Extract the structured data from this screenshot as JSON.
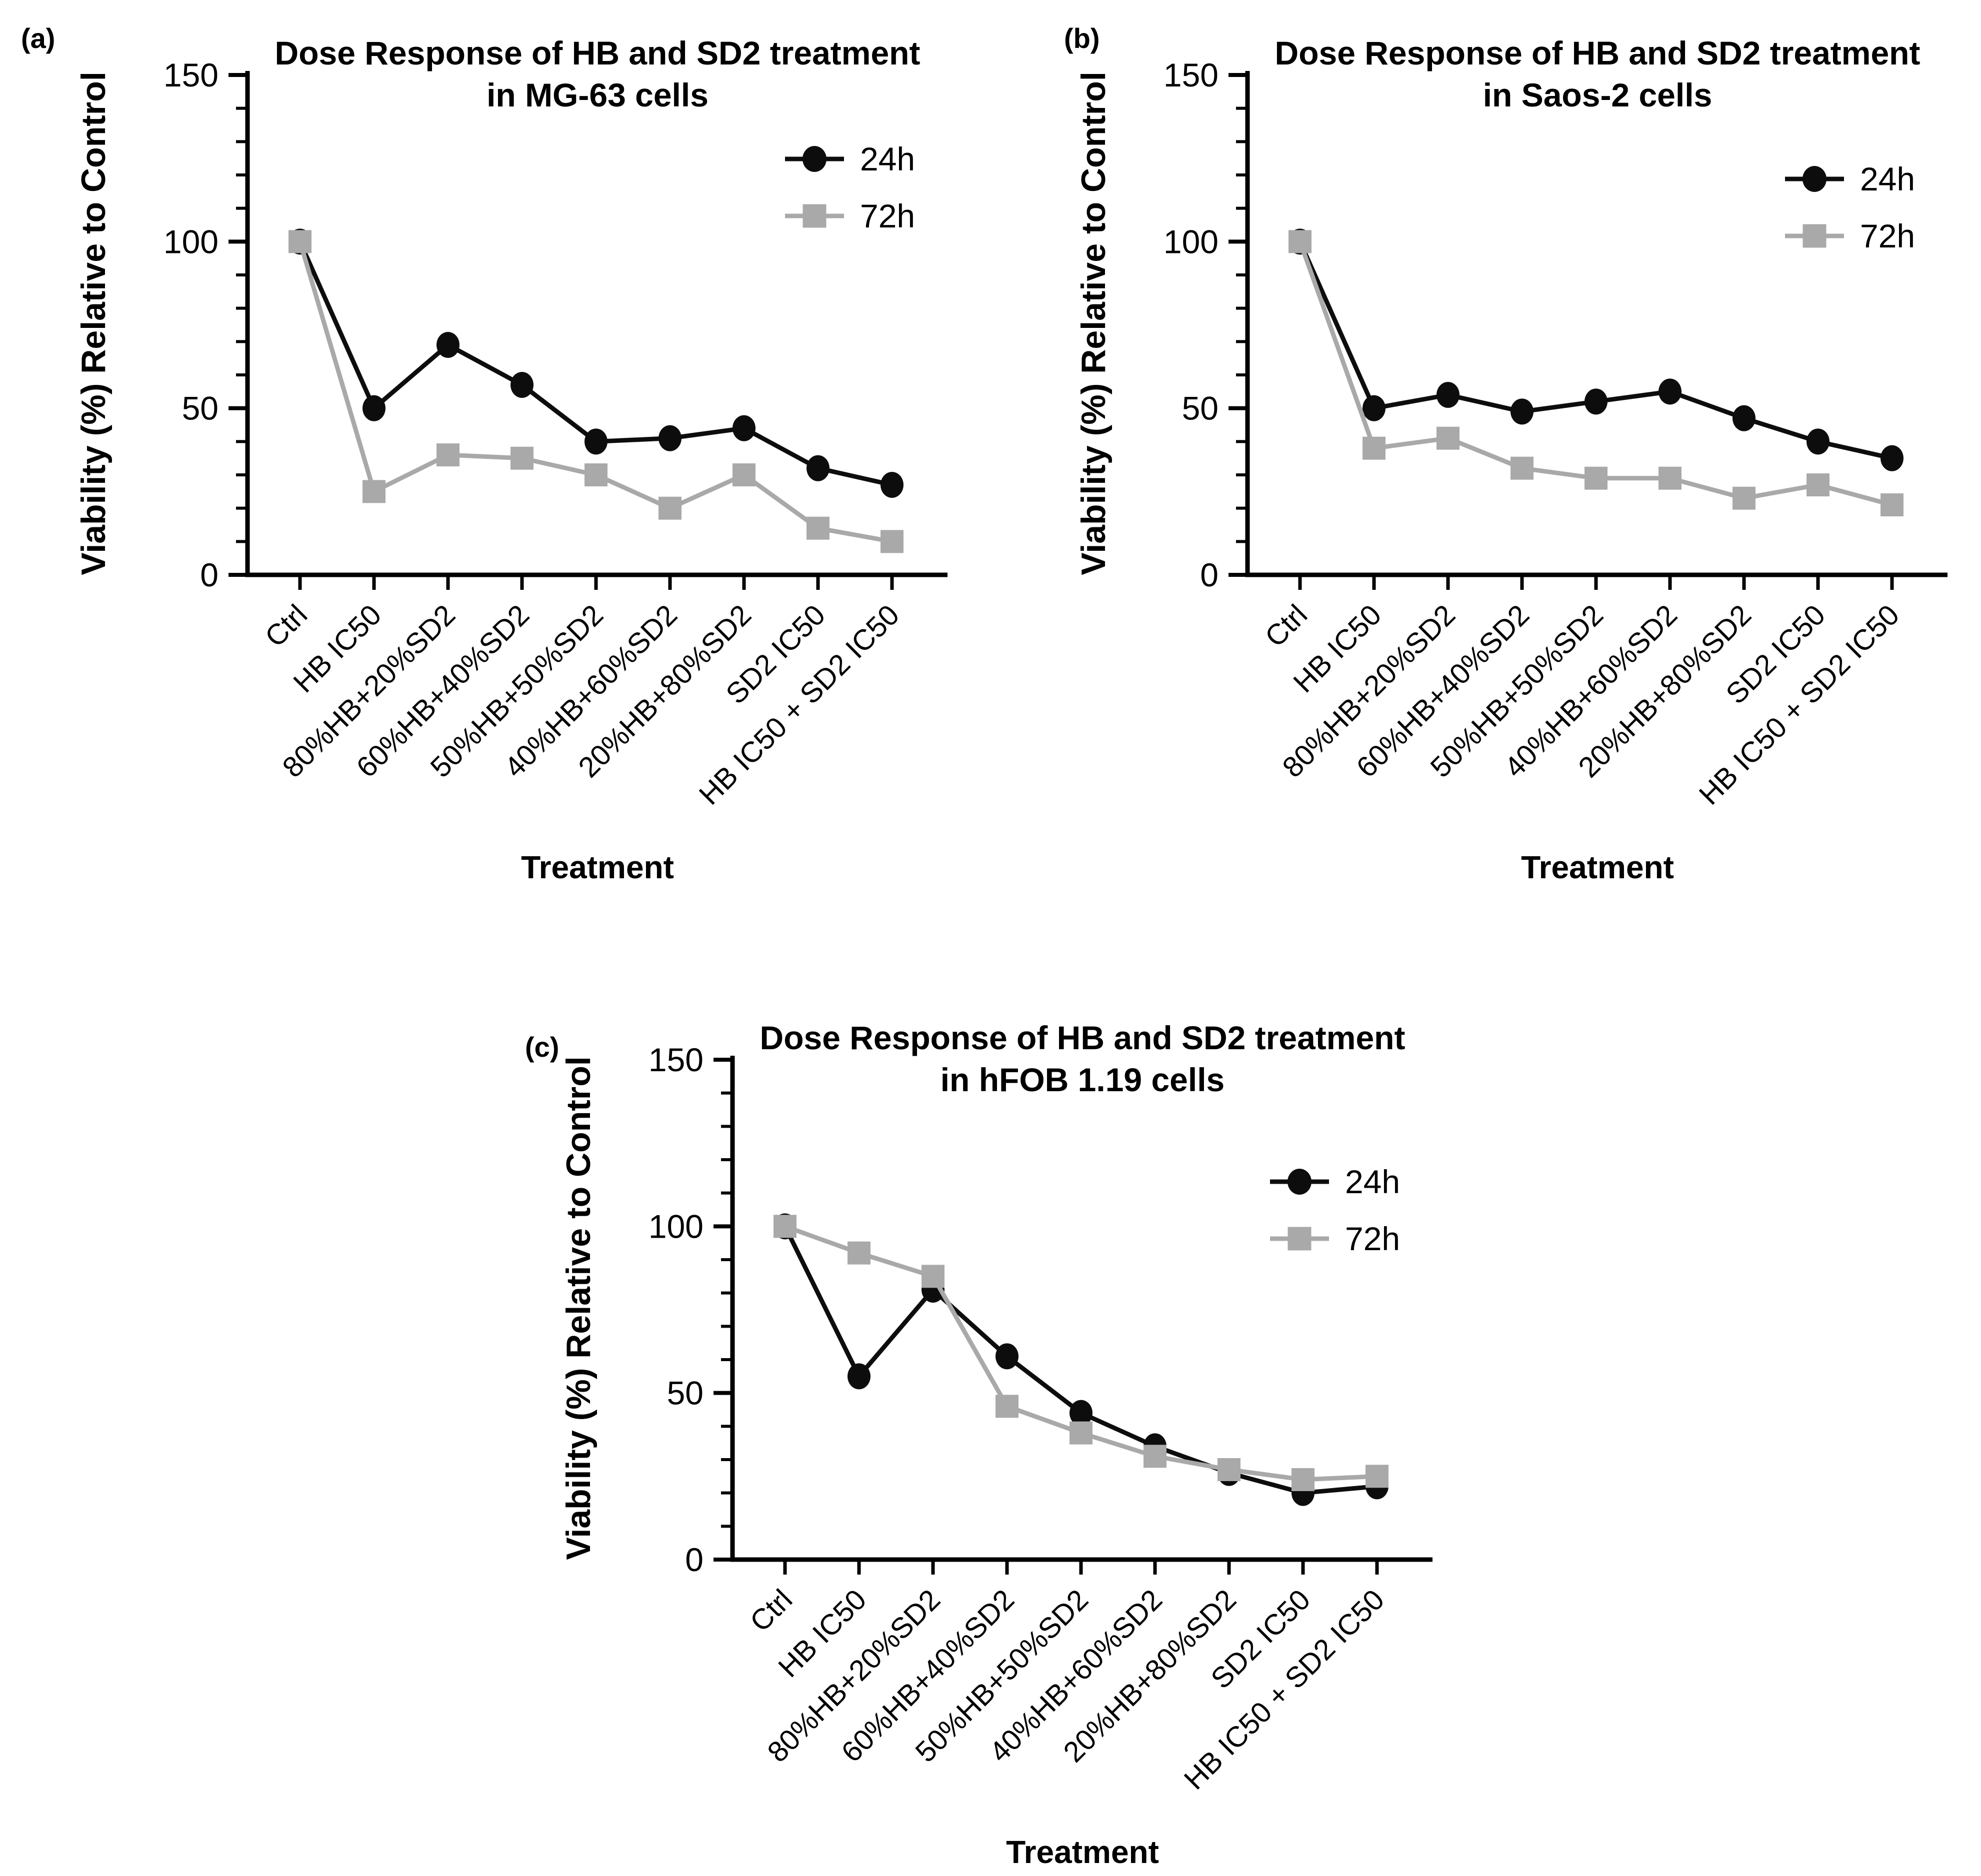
{
  "figure": {
    "background_color": "#ffffff",
    "axis_color": "#000000",
    "series_24h_color": "#0d0d0d",
    "series_72h_color": "#a9a9a9"
  },
  "panels": [
    {
      "panel_label": "(a)",
      "title_line1": "Dose Response of HB and SD2 treatment",
      "title_line2": "in MG-63 cells",
      "y_axis_label": "Viability (%) Relative to Control",
      "x_axis_label": "Treatment",
      "legend": [
        {
          "label": "24h",
          "marker": "circle",
          "color": "#0d0d0d"
        },
        {
          "label": "72h",
          "marker": "square",
          "color": "#a9a9a9"
        }
      ]
    },
    {
      "panel_label": "(b)",
      "title_line1": "Dose Response of HB and SD2 treatment",
      "title_line2": "in Saos-2 cells",
      "y_axis_label": "Viability (%) Relative to Control",
      "x_axis_label": "Treatment",
      "legend": [
        {
          "label": "24h",
          "marker": "circle",
          "color": "#0d0d0d"
        },
        {
          "label": "72h",
          "marker": "square",
          "color": "#a9a9a9"
        }
      ]
    },
    {
      "panel_label": "(c)",
      "title_line1": "Dose Response of HB and SD2 treatment",
      "title_line2": "in hFOB 1.19 cells",
      "y_axis_label": "Viability (%) Relative to Control",
      "x_axis_label": "Treatment",
      "legend": [
        {
          "label": "24h",
          "marker": "circle",
          "color": "#0d0d0d"
        },
        {
          "label": "72h",
          "marker": "square",
          "color": "#a9a9a9"
        }
      ]
    }
  ],
  "chart_data": [
    {
      "type": "line",
      "title": "Dose Response of HB and SD2 treatment in MG-63 cells",
      "xlabel": "Treatment",
      "ylabel": "Viability (%) Relative to Control",
      "ylim": [
        0,
        150
      ],
      "yticks": [
        0,
        50,
        100,
        150
      ],
      "minor_tick_step": 10,
      "grid": false,
      "legend_position": "top-right-inside",
      "axis_color": "#000000",
      "categories": [
        "Ctrl",
        "HB IC50",
        "80%HB+20%SD2",
        "60%HB+40%SD2",
        "50%HB+50%SD2",
        "40%HB+60%SD2",
        "20%HB+80%SD2",
        "SD2 IC50",
        "HB IC50 + SD2 IC50"
      ],
      "series": [
        {
          "name": "24h",
          "marker": "circle",
          "color": "#0d0d0d",
          "values": [
            100,
            50,
            69,
            57,
            40,
            41,
            44,
            32,
            27
          ]
        },
        {
          "name": "72h",
          "marker": "square",
          "color": "#a9a9a9",
          "values": [
            100,
            25,
            36,
            35,
            30,
            20,
            30,
            14,
            10
          ]
        }
      ]
    },
    {
      "type": "line",
      "title": "Dose Response of HB and SD2 treatment in Saos-2 cells",
      "xlabel": "Treatment",
      "ylabel": "Viability (%) Relative to Control",
      "ylim": [
        0,
        150
      ],
      "yticks": [
        0,
        50,
        100,
        150
      ],
      "minor_tick_step": 10,
      "grid": false,
      "legend_position": "top-right-inside",
      "axis_color": "#000000",
      "categories": [
        "Ctrl",
        "HB IC50",
        "80%HB+20%SD2",
        "60%HB+40%SD2",
        "50%HB+50%SD2",
        "40%HB+60%SD2",
        "20%HB+80%SD2",
        "SD2 IC50",
        "HB IC50 + SD2 IC50"
      ],
      "series": [
        {
          "name": "24h",
          "marker": "circle",
          "color": "#0d0d0d",
          "values": [
            100,
            50,
            54,
            49,
            52,
            55,
            47,
            40,
            35
          ]
        },
        {
          "name": "72h",
          "marker": "square",
          "color": "#a9a9a9",
          "values": [
            100,
            38,
            41,
            32,
            29,
            29,
            23,
            27,
            21
          ]
        }
      ]
    },
    {
      "type": "line",
      "title": "Dose Response of HB and SD2 treatment in hFOB 1.19 cells",
      "xlabel": "Treatment",
      "ylabel": "Viability (%) Relative to Control",
      "ylim": [
        0,
        150
      ],
      "yticks": [
        0,
        50,
        100,
        150
      ],
      "minor_tick_step": 10,
      "grid": false,
      "legend_position": "top-right-inside",
      "axis_color": "#000000",
      "categories": [
        "Ctrl",
        "HB IC50",
        "80%HB+20%SD2",
        "60%HB+40%SD2",
        "50%HB+50%SD2",
        "40%HB+60%SD2",
        "20%HB+80%SD2",
        "SD2 IC50",
        "HB IC50 + SD2 IC50"
      ],
      "series": [
        {
          "name": "24h",
          "marker": "circle",
          "color": "#0d0d0d",
          "values": [
            100,
            55,
            81,
            61,
            44,
            34,
            26,
            20,
            22
          ]
        },
        {
          "name": "72h",
          "marker": "square",
          "color": "#a9a9a9",
          "values": [
            100,
            92,
            85,
            46,
            38,
            31,
            27,
            24,
            25
          ]
        }
      ]
    }
  ]
}
